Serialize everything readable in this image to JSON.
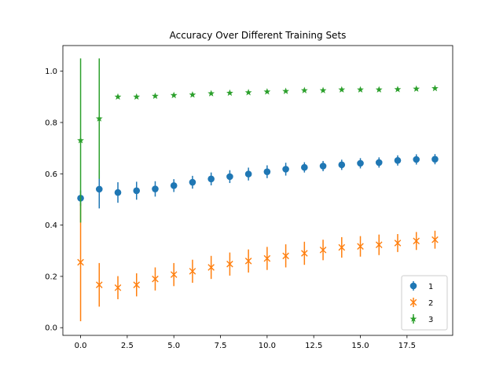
{
  "chart_data": {
    "type": "scatter",
    "title": "Accuracy Over Different Training Sets",
    "xlabel": "",
    "ylabel": "",
    "xlim": [
      -0.95,
      19.95
    ],
    "ylim": [
      -0.03,
      1.1
    ],
    "xticks": [
      0.0,
      2.5,
      5.0,
      7.5,
      10.0,
      12.5,
      15.0,
      17.5
    ],
    "xtick_labels": [
      "0.0",
      "2.5",
      "5.0",
      "7.5",
      "10.0",
      "12.5",
      "15.0",
      "17.5"
    ],
    "yticks": [
      0.0,
      0.2,
      0.4,
      0.6,
      0.8,
      1.0
    ],
    "ytick_labels": [
      "0.0",
      "0.2",
      "0.4",
      "0.6",
      "0.8",
      "1.0"
    ],
    "grid": false,
    "legend_position": "lower-right",
    "x": [
      0,
      1,
      2,
      3,
      4,
      5,
      6,
      7,
      8,
      9,
      10,
      11,
      12,
      13,
      14,
      15,
      16,
      17,
      18,
      19
    ],
    "series": [
      {
        "name": "1",
        "color": "#1f77b4",
        "marker": "circle",
        "values": [
          0.505,
          0.54,
          0.527,
          0.534,
          0.541,
          0.554,
          0.567,
          0.58,
          0.589,
          0.599,
          0.608,
          0.618,
          0.625,
          0.63,
          0.635,
          0.641,
          0.644,
          0.652,
          0.656,
          0.657
        ],
        "errors": [
          0.03,
          0.075,
          0.04,
          0.035,
          0.03,
          0.025,
          0.025,
          0.025,
          0.025,
          0.025,
          0.025,
          0.025,
          0.02,
          0.02,
          0.02,
          0.02,
          0.02,
          0.02,
          0.02,
          0.02
        ]
      },
      {
        "name": "2",
        "color": "#ff7f0e",
        "marker": "x",
        "values": [
          0.255,
          0.167,
          0.156,
          0.167,
          0.19,
          0.207,
          0.22,
          0.235,
          0.248,
          0.26,
          0.27,
          0.28,
          0.29,
          0.303,
          0.313,
          0.317,
          0.323,
          0.33,
          0.338,
          0.343
        ],
        "errors": [
          0.23,
          0.085,
          0.045,
          0.045,
          0.045,
          0.045,
          0.045,
          0.045,
          0.045,
          0.045,
          0.045,
          0.045,
          0.045,
          0.04,
          0.04,
          0.04,
          0.04,
          0.035,
          0.035,
          0.035
        ]
      },
      {
        "name": "3",
        "color": "#2ca02c",
        "marker": "star",
        "values": [
          0.73,
          0.815,
          0.9,
          0.9,
          0.903,
          0.906,
          0.908,
          0.913,
          0.915,
          0.917,
          0.92,
          0.922,
          0.925,
          0.925,
          0.928,
          0.928,
          0.928,
          0.929,
          0.931,
          0.933
        ],
        "errors": [
          0.32,
          0.235,
          0,
          0,
          0,
          0,
          0,
          0,
          0,
          0,
          0,
          0,
          0,
          0,
          0,
          0,
          0,
          0,
          0,
          0
        ]
      }
    ]
  }
}
